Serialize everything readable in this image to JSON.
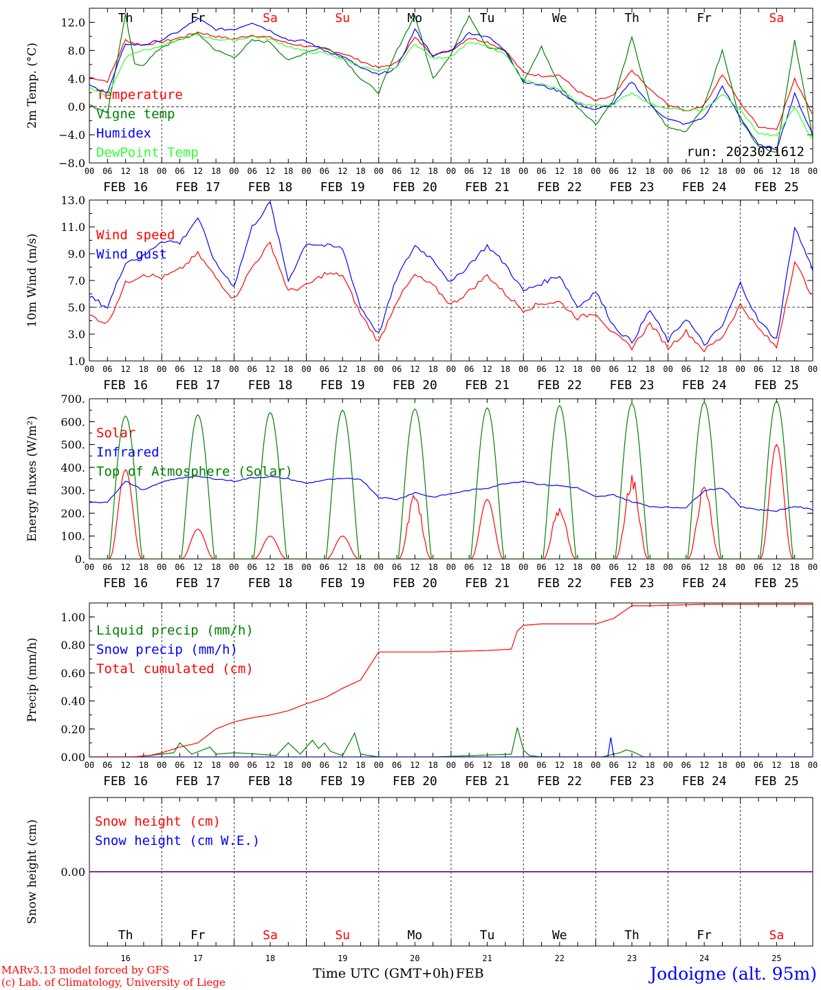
{
  "colors": {
    "red": "#ff0000",
    "green": "#008000",
    "blue": "#0000ff",
    "lightgreen": "#33ff33",
    "purple": "#800080",
    "black": "#000000"
  },
  "days": [
    {
      "dow": "Th",
      "date": "FEB 16",
      "num": "16",
      "weekend": false
    },
    {
      "dow": "Fr",
      "date": "FEB 17",
      "num": "17",
      "weekend": false
    },
    {
      "dow": "Sa",
      "date": "FEB 18",
      "num": "18",
      "weekend": true
    },
    {
      "dow": "Su",
      "date": "FEB 19",
      "num": "19",
      "weekend": true
    },
    {
      "dow": "Mo",
      "date": "FEB 20",
      "num": "20",
      "weekend": false
    },
    {
      "dow": "Tu",
      "date": "FEB 21",
      "num": "21",
      "weekend": false
    },
    {
      "dow": "We",
      "date": "FEB 22",
      "num": "22",
      "weekend": false
    },
    {
      "dow": "Th",
      "date": "FEB 23",
      "num": "23",
      "weekend": false
    },
    {
      "dow": "Fr",
      "date": "FEB 24",
      "num": "24",
      "weekend": false
    },
    {
      "dow": "Sa",
      "date": "FEB 25",
      "num": "25",
      "weekend": true
    }
  ],
  "hour_ticks": [
    "00",
    "06",
    "12",
    "18"
  ],
  "footer": {
    "model_line": "MARv3.13 model forced by GFS",
    "credit_line": "(c) Lab. of Climatology, University of Liege",
    "axis_title": "Time UTC (GMT+0h)",
    "month": "FEB",
    "station": "Jodoigne (alt. 95m)"
  },
  "chart_data": [
    {
      "type": "line",
      "ylabel": "2m Temp. (°C)",
      "ylim": [
        -8,
        14
      ],
      "yticks": [
        "12.0",
        "8.0",
        "4.0",
        "0.0",
        "−4.0",
        "−8.0"
      ],
      "ytick_values": [
        12,
        8,
        4,
        0,
        -4,
        -8
      ],
      "ref_line": 0,
      "annotation": "run: 2023021612",
      "x_unit": "hours from FEB 16 00 UTC",
      "series": [
        {
          "name": "Temperature",
          "color": "#ff0000",
          "x": [
            0,
            6,
            12,
            15,
            18,
            24,
            30,
            36,
            42,
            48,
            54,
            60,
            66,
            72,
            78,
            84,
            90,
            96,
            102,
            108,
            114,
            120,
            126,
            132,
            138,
            144,
            150,
            156,
            162,
            168,
            174,
            180,
            186,
            192,
            198,
            204,
            210,
            216,
            222,
            228,
            234,
            240
          ],
          "y": [
            4.2,
            3.6,
            9.5,
            9.0,
            8.8,
            9.2,
            9.8,
            10.6,
            10.0,
            9.6,
            10.2,
            9.8,
            9.0,
            8.6,
            8.2,
            7.6,
            6.5,
            5.5,
            6.2,
            9.8,
            7.4,
            8.0,
            9.8,
            9.2,
            8.0,
            4.8,
            4.4,
            4.5,
            2.2,
            0.8,
            1.6,
            5.2,
            2.4,
            0.3,
            -0.6,
            0.2,
            4.6,
            0.5,
            -2.8,
            -3.2,
            3.9,
            -1.0
          ]
        },
        {
          "name": "Vigne temp",
          "color": "#008000",
          "x": [
            0,
            6,
            12,
            15,
            18,
            24,
            30,
            36,
            42,
            48,
            54,
            60,
            66,
            72,
            78,
            84,
            90,
            96,
            102,
            108,
            114,
            120,
            126,
            132,
            138,
            144,
            150,
            156,
            162,
            168,
            174,
            180,
            186,
            192,
            198,
            204,
            210,
            216,
            222,
            228,
            234,
            240
          ],
          "y": [
            0.2,
            -0.8,
            13.0,
            6.0,
            6.0,
            8.5,
            9.5,
            10.4,
            8.0,
            7.0,
            9.4,
            9.2,
            6.5,
            7.8,
            8.5,
            7.0,
            4.0,
            2.0,
            8.0,
            13.0,
            4.0,
            7.5,
            13.0,
            8.5,
            8.0,
            3.5,
            8.5,
            3.0,
            0.0,
            -2.5,
            1.0,
            9.8,
            0.5,
            -3.0,
            -3.5,
            0.2,
            8.0,
            -2.0,
            -5.5,
            -6.5,
            9.5,
            -4.5
          ]
        },
        {
          "name": "Humidex",
          "color": "#0000ff",
          "x": [
            0,
            6,
            12,
            15,
            18,
            24,
            30,
            36,
            42,
            48,
            54,
            60,
            66,
            72,
            78,
            84,
            90,
            96,
            102,
            108,
            114,
            120,
            126,
            132,
            138,
            144,
            150,
            156,
            162,
            168,
            174,
            180,
            186,
            192,
            198,
            204,
            210,
            216,
            222,
            228,
            234,
            240
          ],
          "y": [
            3.0,
            2.0,
            9.0,
            8.8,
            8.8,
            9.5,
            10.8,
            12.5,
            11.0,
            11.0,
            12.0,
            10.8,
            9.5,
            9.3,
            8.0,
            7.2,
            5.5,
            4.5,
            5.5,
            11.0,
            7.2,
            8.0,
            10.5,
            10.0,
            8.0,
            3.6,
            3.0,
            2.2,
            0.4,
            -0.5,
            0.5,
            3.6,
            0.2,
            -1.8,
            -2.5,
            -1.5,
            2.8,
            -1.5,
            -5.5,
            -6.0,
            1.8,
            -4.0
          ]
        },
        {
          "name": "DewPoint Temp",
          "color": "#33ff33",
          "x": [
            0,
            6,
            12,
            15,
            18,
            24,
            30,
            36,
            42,
            48,
            54,
            60,
            66,
            72,
            78,
            84,
            90,
            96,
            102,
            108,
            114,
            120,
            126,
            132,
            138,
            144,
            150,
            156,
            162,
            168,
            174,
            180,
            186,
            192,
            198,
            204,
            210,
            216,
            222,
            228,
            234,
            240
          ],
          "y": [
            2.8,
            1.5,
            7.0,
            7.8,
            8.0,
            8.6,
            9.6,
            10.2,
            9.6,
            9.4,
            10.0,
            9.6,
            8.6,
            7.8,
            7.6,
            6.8,
            5.8,
            5.0,
            5.6,
            9.0,
            6.8,
            7.2,
            9.2,
            8.6,
            7.4,
            3.8,
            3.2,
            2.4,
            0.6,
            0.1,
            0.4,
            2.0,
            0.4,
            -0.2,
            -0.5,
            -0.5,
            1.8,
            -0.5,
            -3.8,
            -4.2,
            0.0,
            -4.8
          ]
        }
      ]
    },
    {
      "type": "line",
      "ylabel": "10m Wind (m/s)",
      "ylim": [
        1,
        13
      ],
      "yticks": [
        "13.0",
        "11.0",
        "9.0",
        "7.0",
        "5.0",
        "3.0",
        "1.0"
      ],
      "ytick_values": [
        13,
        11,
        9,
        7,
        5,
        3,
        1
      ],
      "ref_line": 5,
      "series": [
        {
          "name": "Wind speed",
          "color": "#ff0000",
          "x": [
            0,
            6,
            12,
            18,
            24,
            30,
            36,
            42,
            48,
            54,
            60,
            66,
            72,
            78,
            84,
            90,
            96,
            102,
            108,
            114,
            120,
            126,
            132,
            138,
            144,
            150,
            156,
            162,
            168,
            174,
            180,
            186,
            192,
            198,
            204,
            210,
            216,
            222,
            228,
            234,
            240
          ],
          "y": [
            4.4,
            3.8,
            6.8,
            7.5,
            7.2,
            7.8,
            9.0,
            7.2,
            5.6,
            8.0,
            9.8,
            6.2,
            6.6,
            7.5,
            7.4,
            4.5,
            2.4,
            5.5,
            7.4,
            6.6,
            5.2,
            6.2,
            7.4,
            6.0,
            4.8,
            5.3,
            5.4,
            4.2,
            4.6,
            3.0,
            2.0,
            3.8,
            2.0,
            3.2,
            1.8,
            2.8,
            5.2,
            3.4,
            2.0,
            8.4,
            5.8
          ]
        },
        {
          "name": "Wind gust",
          "color": "#0000ff",
          "x": [
            0,
            6,
            12,
            18,
            24,
            30,
            36,
            42,
            48,
            54,
            60,
            66,
            72,
            78,
            84,
            90,
            96,
            102,
            108,
            114,
            120,
            126,
            132,
            138,
            144,
            150,
            156,
            162,
            168,
            174,
            180,
            186,
            192,
            198,
            204,
            210,
            216,
            222,
            228,
            234,
            240
          ],
          "y": [
            5.8,
            5.0,
            8.4,
            8.8,
            10.0,
            9.8,
            11.7,
            8.2,
            6.6,
            11.0,
            12.8,
            7.0,
            9.8,
            9.6,
            9.4,
            5.0,
            3.0,
            7.2,
            9.6,
            8.6,
            6.8,
            8.2,
            9.6,
            8.2,
            6.2,
            6.8,
            7.4,
            5.0,
            6.2,
            3.6,
            2.4,
            4.8,
            2.5,
            4.2,
            2.2,
            3.6,
            6.8,
            4.0,
            2.6,
            11.0,
            7.8
          ]
        }
      ]
    },
    {
      "type": "line",
      "ylabel": "Energy fluxes (W/m²)",
      "ylim": [
        0,
        700
      ],
      "yticks": [
        "700.",
        "600.",
        "500.",
        "400.",
        "300.",
        "200.",
        "100.",
        "0."
      ],
      "ytick_values": [
        700,
        600,
        500,
        400,
        300,
        200,
        100,
        0
      ],
      "series": [
        {
          "name": "Solar",
          "color": "#ff0000",
          "daily_peaks": [
            390,
            130,
            100,
            100,
            290,
            260,
            240,
            370,
            330,
            500
          ]
        },
        {
          "name": "Infrared",
          "color": "#0000ff",
          "x": [
            0,
            6,
            12,
            18,
            24,
            30,
            36,
            42,
            48,
            54,
            60,
            66,
            72,
            78,
            84,
            90,
            96,
            102,
            108,
            114,
            120,
            126,
            132,
            138,
            144,
            150,
            156,
            162,
            168,
            174,
            180,
            186,
            192,
            198,
            204,
            210,
            216,
            222,
            228,
            234,
            240
          ],
          "y": [
            245,
            250,
            340,
            300,
            335,
            355,
            360,
            350,
            340,
            355,
            360,
            350,
            330,
            345,
            350,
            350,
            270,
            260,
            290,
            270,
            285,
            300,
            310,
            330,
            340,
            325,
            320,
            310,
            270,
            280,
            250,
            230,
            225,
            225,
            300,
            310,
            230,
            215,
            210,
            230,
            215
          ]
        },
        {
          "name": "Top of Atmosphere (Solar)",
          "color": "#008000",
          "daily_peaks": [
            625,
            630,
            640,
            650,
            655,
            660,
            670,
            680,
            685,
            690
          ]
        }
      ]
    },
    {
      "type": "line",
      "ylabel": "Precip (mm/h)",
      "ylim": [
        0,
        1.1
      ],
      "yticks": [
        "1.00",
        "0.80",
        "0.60",
        "0.40",
        "0.20",
        "0.00"
      ],
      "ytick_values": [
        1.0,
        0.8,
        0.6,
        0.4,
        0.2,
        0.0
      ],
      "series": [
        {
          "name": "Liquid precip (mm/h)",
          "color": "#008000",
          "x": [
            0,
            14,
            20,
            24,
            28,
            30,
            34,
            40,
            42,
            48,
            56,
            62,
            66,
            70,
            74,
            76,
            78,
            80,
            84,
            88,
            90,
            96,
            114,
            140,
            142,
            144,
            146,
            150,
            170,
            176,
            178,
            180,
            184,
            240
          ],
          "y": [
            0,
            0,
            0.01,
            0.02,
            0.03,
            0.1,
            0.02,
            0.07,
            0.02,
            0.03,
            0.02,
            0.01,
            0.1,
            0.02,
            0.12,
            0.06,
            0.1,
            0.04,
            0.01,
            0.17,
            0.02,
            0.0,
            0,
            0.02,
            0.21,
            0.05,
            0.01,
            0,
            0,
            0.03,
            0.05,
            0.04,
            0.0,
            0
          ]
        },
        {
          "name": "Snow precip (mm/h)",
          "color": "#0000ff",
          "x": [
            0,
            172,
            173,
            174,
            240
          ],
          "y": [
            0,
            0,
            0.14,
            0,
            0
          ]
        },
        {
          "name": "Total cumulated (cm)",
          "color": "#ff0000",
          "x": [
            0,
            14,
            20,
            24,
            30,
            36,
            42,
            48,
            54,
            60,
            66,
            72,
            78,
            84,
            90,
            96,
            114,
            132,
            140,
            142,
            144,
            150,
            168,
            174,
            180,
            186,
            204,
            240
          ],
          "y": [
            0,
            0,
            0.01,
            0.03,
            0.07,
            0.1,
            0.2,
            0.25,
            0.28,
            0.3,
            0.33,
            0.38,
            0.42,
            0.49,
            0.55,
            0.75,
            0.75,
            0.76,
            0.77,
            0.9,
            0.94,
            0.95,
            0.95,
            0.99,
            1.08,
            1.08,
            1.09,
            1.09
          ]
        }
      ]
    },
    {
      "type": "line",
      "ylabel": "Snow height (cm)",
      "ylim": [
        -1,
        1
      ],
      "yticks": [
        "0.00"
      ],
      "ytick_values": [
        0
      ],
      "series": [
        {
          "name": "Snow height (cm)",
          "color": "#ff0000",
          "x": [
            0,
            240
          ],
          "y": [
            0,
            0
          ]
        },
        {
          "name": "Snow height (cm W.E.)",
          "color": "#0000ff",
          "x": [
            0,
            240
          ],
          "y": [
            0,
            0
          ]
        }
      ]
    }
  ]
}
